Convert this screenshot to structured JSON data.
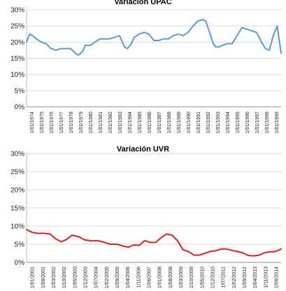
{
  "chart_data": [
    {
      "type": "line",
      "title": "Variación UPAC",
      "xlabel": "",
      "ylabel": "",
      "ylim": [
        0,
        30
      ],
      "y_tick_labels": [
        "0%",
        "5%",
        "10%",
        "15%",
        "20%",
        "25%",
        "30%"
      ],
      "x_tick_labels": [
        "1/01/1974",
        "1/01/1975",
        "1/01/1976",
        "1/01/1977",
        "1/01/1978",
        "1/01/1979",
        "1/01/1980",
        "1/01/1981",
        "1/01/1982",
        "1/01/1983",
        "1/01/1984",
        "1/01/1985",
        "1/01/1986",
        "1/01/1987",
        "1/01/1988",
        "1/01/1989",
        "1/01/1990",
        "1/01/1991",
        "1/01/1992",
        "1/01/1993",
        "1/01/1994",
        "1/01/1995",
        "1/01/1996",
        "1/01/1997",
        "1/01/1998",
        "1/01/1999"
      ],
      "x_range": [
        1974.0,
        2000.0
      ],
      "grid": true,
      "series_color": "#5b9bd5",
      "series": [
        {
          "x": [
            1974.0,
            1974.3,
            1974.6,
            1975.0,
            1975.5,
            1976.0,
            1976.5,
            1977.0,
            1977.5,
            1978.0,
            1978.5,
            1979.0,
            1979.3,
            1979.7,
            1980.0,
            1980.5,
            1981.0,
            1981.5,
            1982.0,
            1982.5,
            1983.0,
            1983.5,
            1984.0,
            1984.3,
            1984.7,
            1985.0,
            1985.5,
            1986.0,
            1986.5,
            1987.0,
            1987.5,
            1988.0,
            1988.5,
            1989.0,
            1989.5,
            1990.0,
            1990.5,
            1991.0,
            1991.5,
            1992.0,
            1992.3,
            1992.7,
            1993.0,
            1993.3,
            1993.7,
            1994.0,
            1994.5,
            1995.0,
            1995.5,
            1996.0,
            1996.5,
            1997.0,
            1997.5,
            1998.0,
            1998.4,
            1998.8,
            1999.2,
            1999.6,
            2000.0
          ],
          "values": [
            20.0,
            22.5,
            22.0,
            21.0,
            20.0,
            19.5,
            18.0,
            17.5,
            18.0,
            18.0,
            18.0,
            16.5,
            16.0,
            17.0,
            19.0,
            19.0,
            20.0,
            21.0,
            21.0,
            21.0,
            21.5,
            22.0,
            18.5,
            18.0,
            19.5,
            21.5,
            22.5,
            23.0,
            22.5,
            20.5,
            20.5,
            21.0,
            21.0,
            22.0,
            22.5,
            22.0,
            23.0,
            25.0,
            26.5,
            27.0,
            26.5,
            23.0,
            20.0,
            18.5,
            18.5,
            19.0,
            19.5,
            19.5,
            22.0,
            24.5,
            24.0,
            23.5,
            23.0,
            20.0,
            18.0,
            17.5,
            22.0,
            25.0,
            16.5
          ]
        }
      ]
    },
    {
      "type": "line",
      "title": "Variación UVR",
      "xlabel": "",
      "ylabel": "",
      "ylim": [
        0,
        30
      ],
      "y_tick_labels": [
        "0%",
        "5%",
        "10%",
        "15%",
        "20%",
        "25%",
        "30%"
      ],
      "x_tick_labels": [
        "1/01/2001",
        "1/08/2001",
        "1/03/2002",
        "1/10/2002",
        "1/05/2003",
        "1/12/2003",
        "1/07/2004",
        "1/02/2005",
        "1/09/2005",
        "1/04/2006",
        "1/11/2006",
        "1/06/2007",
        "1/01/2008",
        "1/08/2008",
        "1/03/2009",
        "1/10/2009",
        "1/05/2010",
        "1/12/2010",
        "1/07/2011",
        "1/02/2012",
        "1/09/2012",
        "1/04/2013",
        "1/11/2013",
        "1/06/2014"
      ],
      "x_range": [
        2001.0,
        2015.0
      ],
      "grid": true,
      "series_color": "#e3201b",
      "series": [
        {
          "x": [
            2001.0,
            2001.3,
            2001.6,
            2002.0,
            2002.3,
            2002.6,
            2002.9,
            2003.2,
            2003.5,
            2003.9,
            2004.2,
            2004.6,
            2004.9,
            2005.3,
            2005.6,
            2006.0,
            2006.3,
            2006.6,
            2006.9,
            2007.2,
            2007.5,
            2007.8,
            2008.1,
            2008.4,
            2008.7,
            2009.0,
            2009.3,
            2009.6,
            2009.9,
            2010.2,
            2010.5,
            2010.8,
            2011.1,
            2011.4,
            2011.7,
            2012.0,
            2012.3,
            2012.6,
            2012.9,
            2013.2,
            2013.5,
            2013.8,
            2014.1,
            2014.4,
            2014.7,
            2015.0
          ],
          "values": [
            9.0,
            8.3,
            8.0,
            8.0,
            7.8,
            6.5,
            5.7,
            6.3,
            7.5,
            7.0,
            6.2,
            5.9,
            6.0,
            5.5,
            5.0,
            5.0,
            4.5,
            4.2,
            4.8,
            4.7,
            6.0,
            5.5,
            5.5,
            6.8,
            7.8,
            7.5,
            6.0,
            3.5,
            3.0,
            2.0,
            2.0,
            2.5,
            3.0,
            3.2,
            3.7,
            3.7,
            3.3,
            3.0,
            2.6,
            1.9,
            1.8,
            2.0,
            2.7,
            2.9,
            3.0,
            3.7
          ]
        }
      ]
    }
  ]
}
